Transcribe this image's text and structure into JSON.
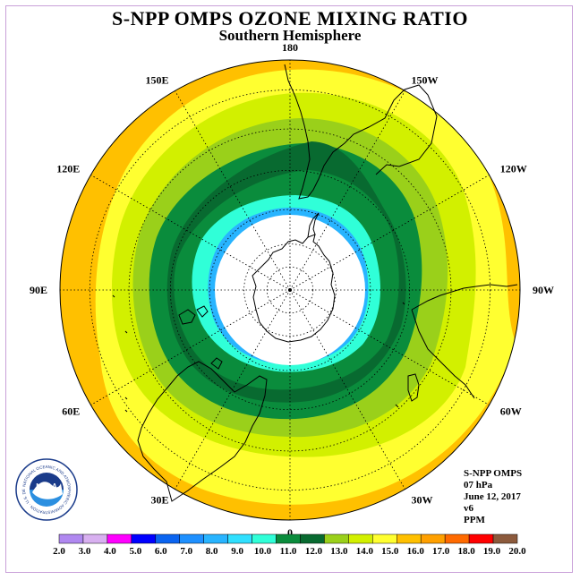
{
  "title": "S-NPP OMPS OZONE MIXING RATIO",
  "subtitle": "Southern Hemisphere",
  "logo_text": "NOAA",
  "logo_ring_text": "NATIONAL OCEANIC AND ATMOSPHERIC ADMINISTRATION · U.S. DEPARTMENT OF COMMERCE",
  "info": {
    "instrument": "S-NPP OMPS",
    "pressure": "07 hPa",
    "date": "June 12, 2017",
    "version": "v6",
    "units": "PPM"
  },
  "longitude_labels": [
    {
      "text": "90W",
      "lon": -90
    },
    {
      "text": "60W",
      "lon": -60
    },
    {
      "text": "30W",
      "lon": -30
    },
    {
      "text": "0",
      "lon": 0
    },
    {
      "text": "30E",
      "lon": 30
    },
    {
      "text": "60E",
      "lon": 60
    },
    {
      "text": "90E",
      "lon": 90
    },
    {
      "text": "120E",
      "lon": 120
    },
    {
      "text": "150E",
      "lon": 150
    },
    {
      "text": "180",
      "lon": 180
    },
    {
      "text": "150W",
      "lon": -150
    },
    {
      "text": "120W",
      "lon": -120
    }
  ],
  "colorbar": {
    "ticks": [
      "2.0",
      "3.0",
      "4.0",
      "5.0",
      "6.0",
      "7.0",
      "8.0",
      "9.0",
      "10.0",
      "11.0",
      "12.0",
      "13.0",
      "14.0",
      "15.0",
      "16.0",
      "17.0",
      "18.0",
      "19.0",
      "20.0"
    ],
    "colors": [
      "#b088f0",
      "#d8b0f0",
      "#ff00ff",
      "#0000ff",
      "#0a64f0",
      "#1e90ff",
      "#28b4ff",
      "#30e0ff",
      "#30ffd8",
      "#0a8c3c",
      "#086a30",
      "#9ad01a",
      "#d2f000",
      "#ffff30",
      "#ffc000",
      "#ffa000",
      "#ff6a00",
      "#ff0000",
      "#8c5a3c"
    ]
  },
  "map_colors": {
    "outer": "#ffc000",
    "z15": "#ffff30",
    "z14": "#d2f000",
    "z13": "#9ad01a",
    "z12": "#0a8c3c",
    "z11": "#086a30",
    "z10": "#0a8c3c",
    "z9": "#30ffd8",
    "z8": "#28b4ff",
    "core": "#ffffff"
  }
}
